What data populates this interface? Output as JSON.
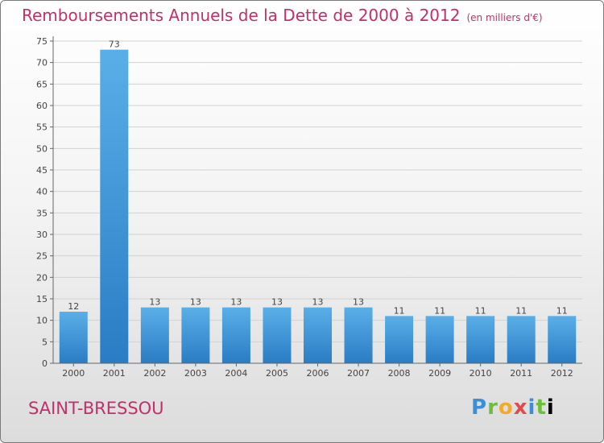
{
  "title": "Remboursements Annuels de la Dette de 2000 à 2012",
  "unit": "(en milliers d'€)",
  "commune": "SAINT-BRESSOU",
  "logo": [
    "P",
    "r",
    "o",
    "x",
    "i",
    "t",
    "i"
  ],
  "colors": {
    "title": "#c0306a",
    "bar_top": "#5aafe8",
    "bar_bottom": "#2a7cc4"
  },
  "chart_data": {
    "type": "bar",
    "title": "Remboursements Annuels de la Dette de 2000 à 2012",
    "subtitle": "(en milliers d'€)",
    "categories": [
      "2000",
      "2001",
      "2002",
      "2003",
      "2004",
      "2005",
      "2006",
      "2007",
      "2008",
      "2009",
      "2010",
      "2011",
      "2012"
    ],
    "values": [
      12,
      73,
      13,
      13,
      13,
      13,
      13,
      13,
      11,
      11,
      11,
      11,
      11
    ],
    "data_labels": [
      "12",
      "73",
      "13",
      "13",
      "13",
      "13",
      "13",
      "13",
      "11",
      "11",
      "11",
      "11",
      "11"
    ],
    "ylim": [
      0,
      75
    ],
    "yticks": [
      0,
      5,
      10,
      15,
      20,
      25,
      30,
      35,
      40,
      45,
      50,
      55,
      60,
      65,
      70,
      75
    ],
    "grid": true,
    "xlabel": "",
    "ylabel": ""
  }
}
